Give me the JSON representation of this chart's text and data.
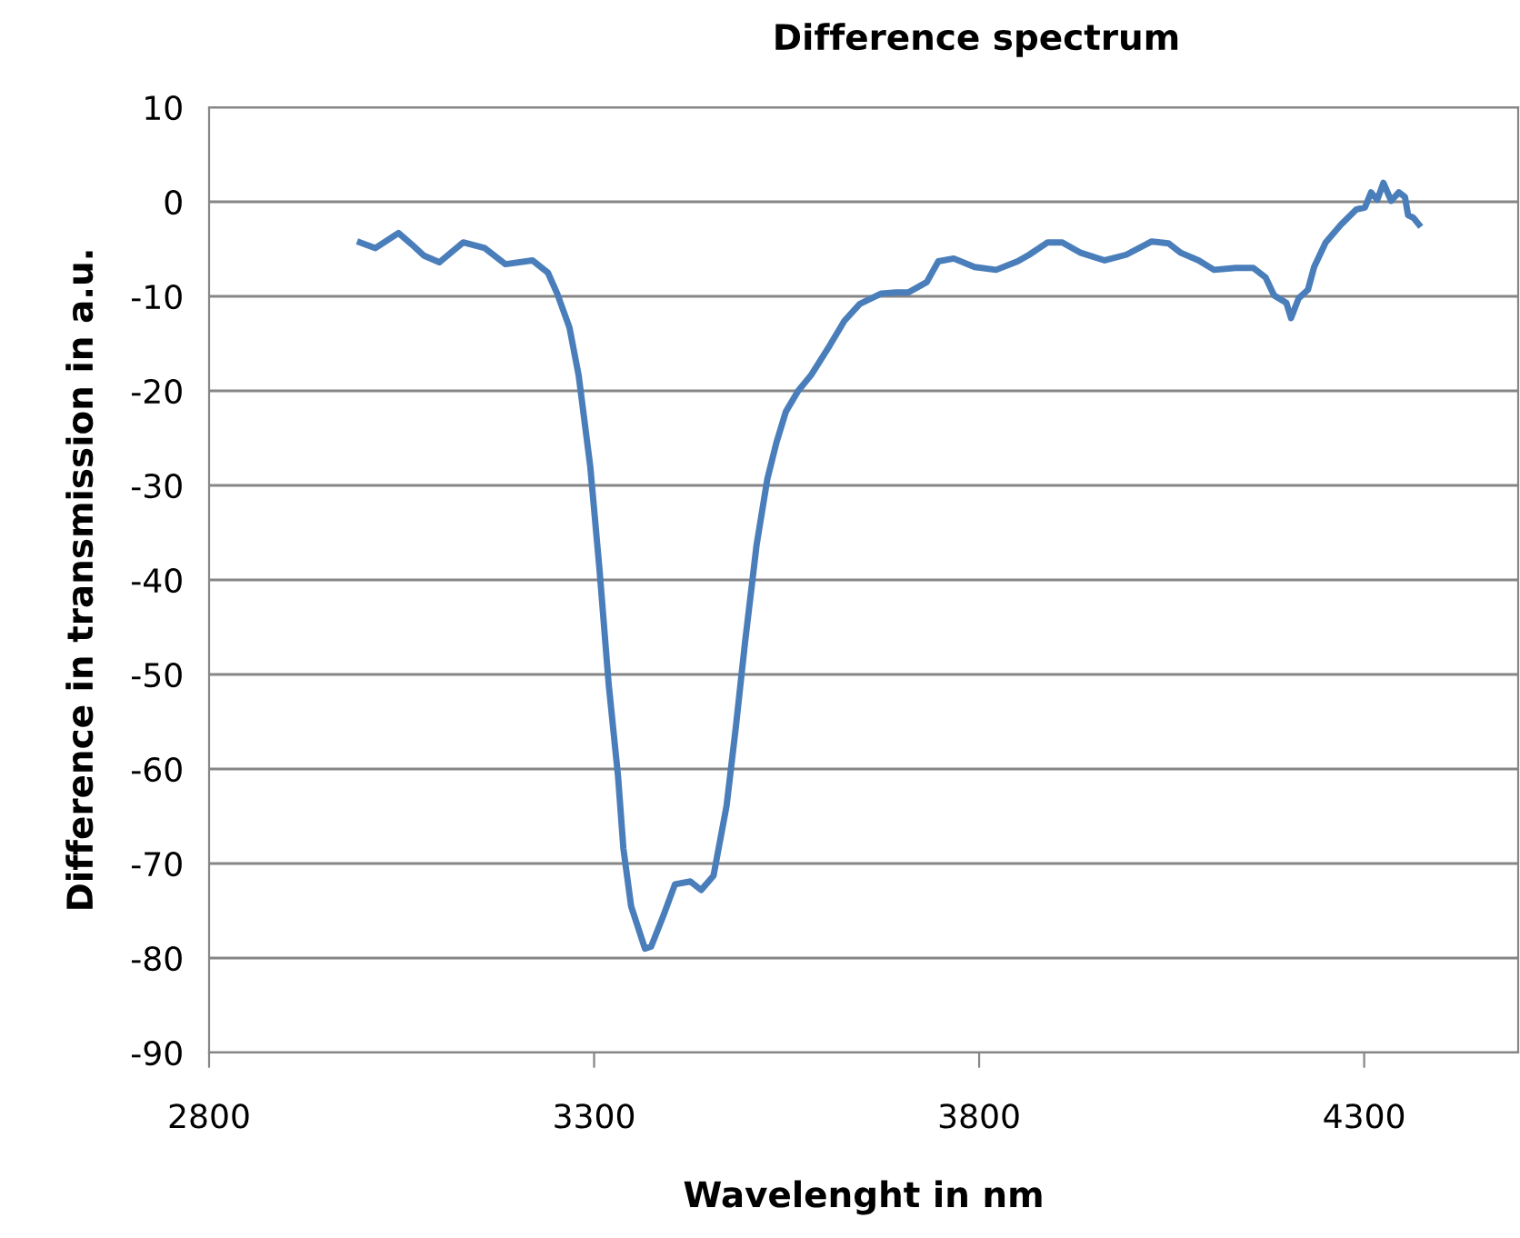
{
  "chart_data": {
    "type": "line",
    "title": "Difference spectrum",
    "xlabel": "Wavelenght in nm",
    "ylabel": "Difference in transmission in a.u.",
    "series": [
      {
        "color": "#4a7ebb",
        "x": [
          2996,
          3016,
          3046,
          3063,
          3079,
          3099,
          3130,
          3158,
          3185,
          3220,
          3240,
          3252,
          3268,
          3280,
          3295,
          3307,
          3319,
          3331,
          3338,
          3348,
          3366,
          3374,
          3390,
          3405,
          3425,
          3439,
          3455,
          3472,
          3484,
          3496,
          3511,
          3525,
          3537,
          3549,
          3565,
          3582,
          3606,
          3625,
          3645,
          3673,
          3692,
          3708,
          3732,
          3747,
          3767,
          3794,
          3822,
          3850,
          3865,
          3889,
          3908,
          3932,
          3963,
          3991,
          4024,
          4046,
          4062,
          4085,
          4105,
          4133,
          4156,
          4172,
          4183,
          4199,
          4205,
          4215,
          4227,
          4235,
          4250,
          4270,
          4290,
          4301,
          4309,
          4317,
          4325,
          4335,
          4345,
          4353,
          4357,
          4364,
          4371
        ],
        "values": [
          -4.3,
          -4.9,
          -3.3,
          -4.5,
          -5.7,
          -6.4,
          -4.3,
          -4.9,
          -6.6,
          -6.2,
          -7.5,
          -9.7,
          -13.3,
          -18.4,
          -28.0,
          -38.9,
          -51.1,
          -60.7,
          -68.4,
          -74.5,
          -79.0,
          -78.8,
          -75.5,
          -72.2,
          -71.9,
          -72.8,
          -71.3,
          -63.9,
          -55.6,
          -46.6,
          -36.3,
          -29.3,
          -25.4,
          -22.2,
          -20.0,
          -18.3,
          -15.2,
          -12.6,
          -10.8,
          -9.7,
          -9.6,
          -9.6,
          -8.5,
          -6.3,
          -6.0,
          -6.9,
          -7.2,
          -6.3,
          -5.6,
          -4.3,
          -4.3,
          -5.4,
          -6.2,
          -5.6,
          -4.2,
          -4.4,
          -5.4,
          -6.2,
          -7.2,
          -7.0,
          -7.0,
          -8.0,
          -9.9,
          -10.7,
          -12.3,
          -10.2,
          -9.3,
          -6.9,
          -4.3,
          -2.4,
          -0.8,
          -0.6,
          1.0,
          0.2,
          2.0,
          0.1,
          1.0,
          0.5,
          -1.4,
          -1.7,
          -2.4
        ]
      }
    ],
    "xlim": [
      2800,
      4500
    ],
    "xticks": [
      2800,
      3300,
      3800,
      4300
    ],
    "ylim": [
      -90,
      10
    ],
    "yticks": [
      -90,
      -80,
      -70,
      -60,
      -50,
      -40,
      -30,
      -20,
      -10,
      0,
      10
    ],
    "grid": "y",
    "legend": false,
    "marker": "none",
    "line_style": "solid"
  }
}
